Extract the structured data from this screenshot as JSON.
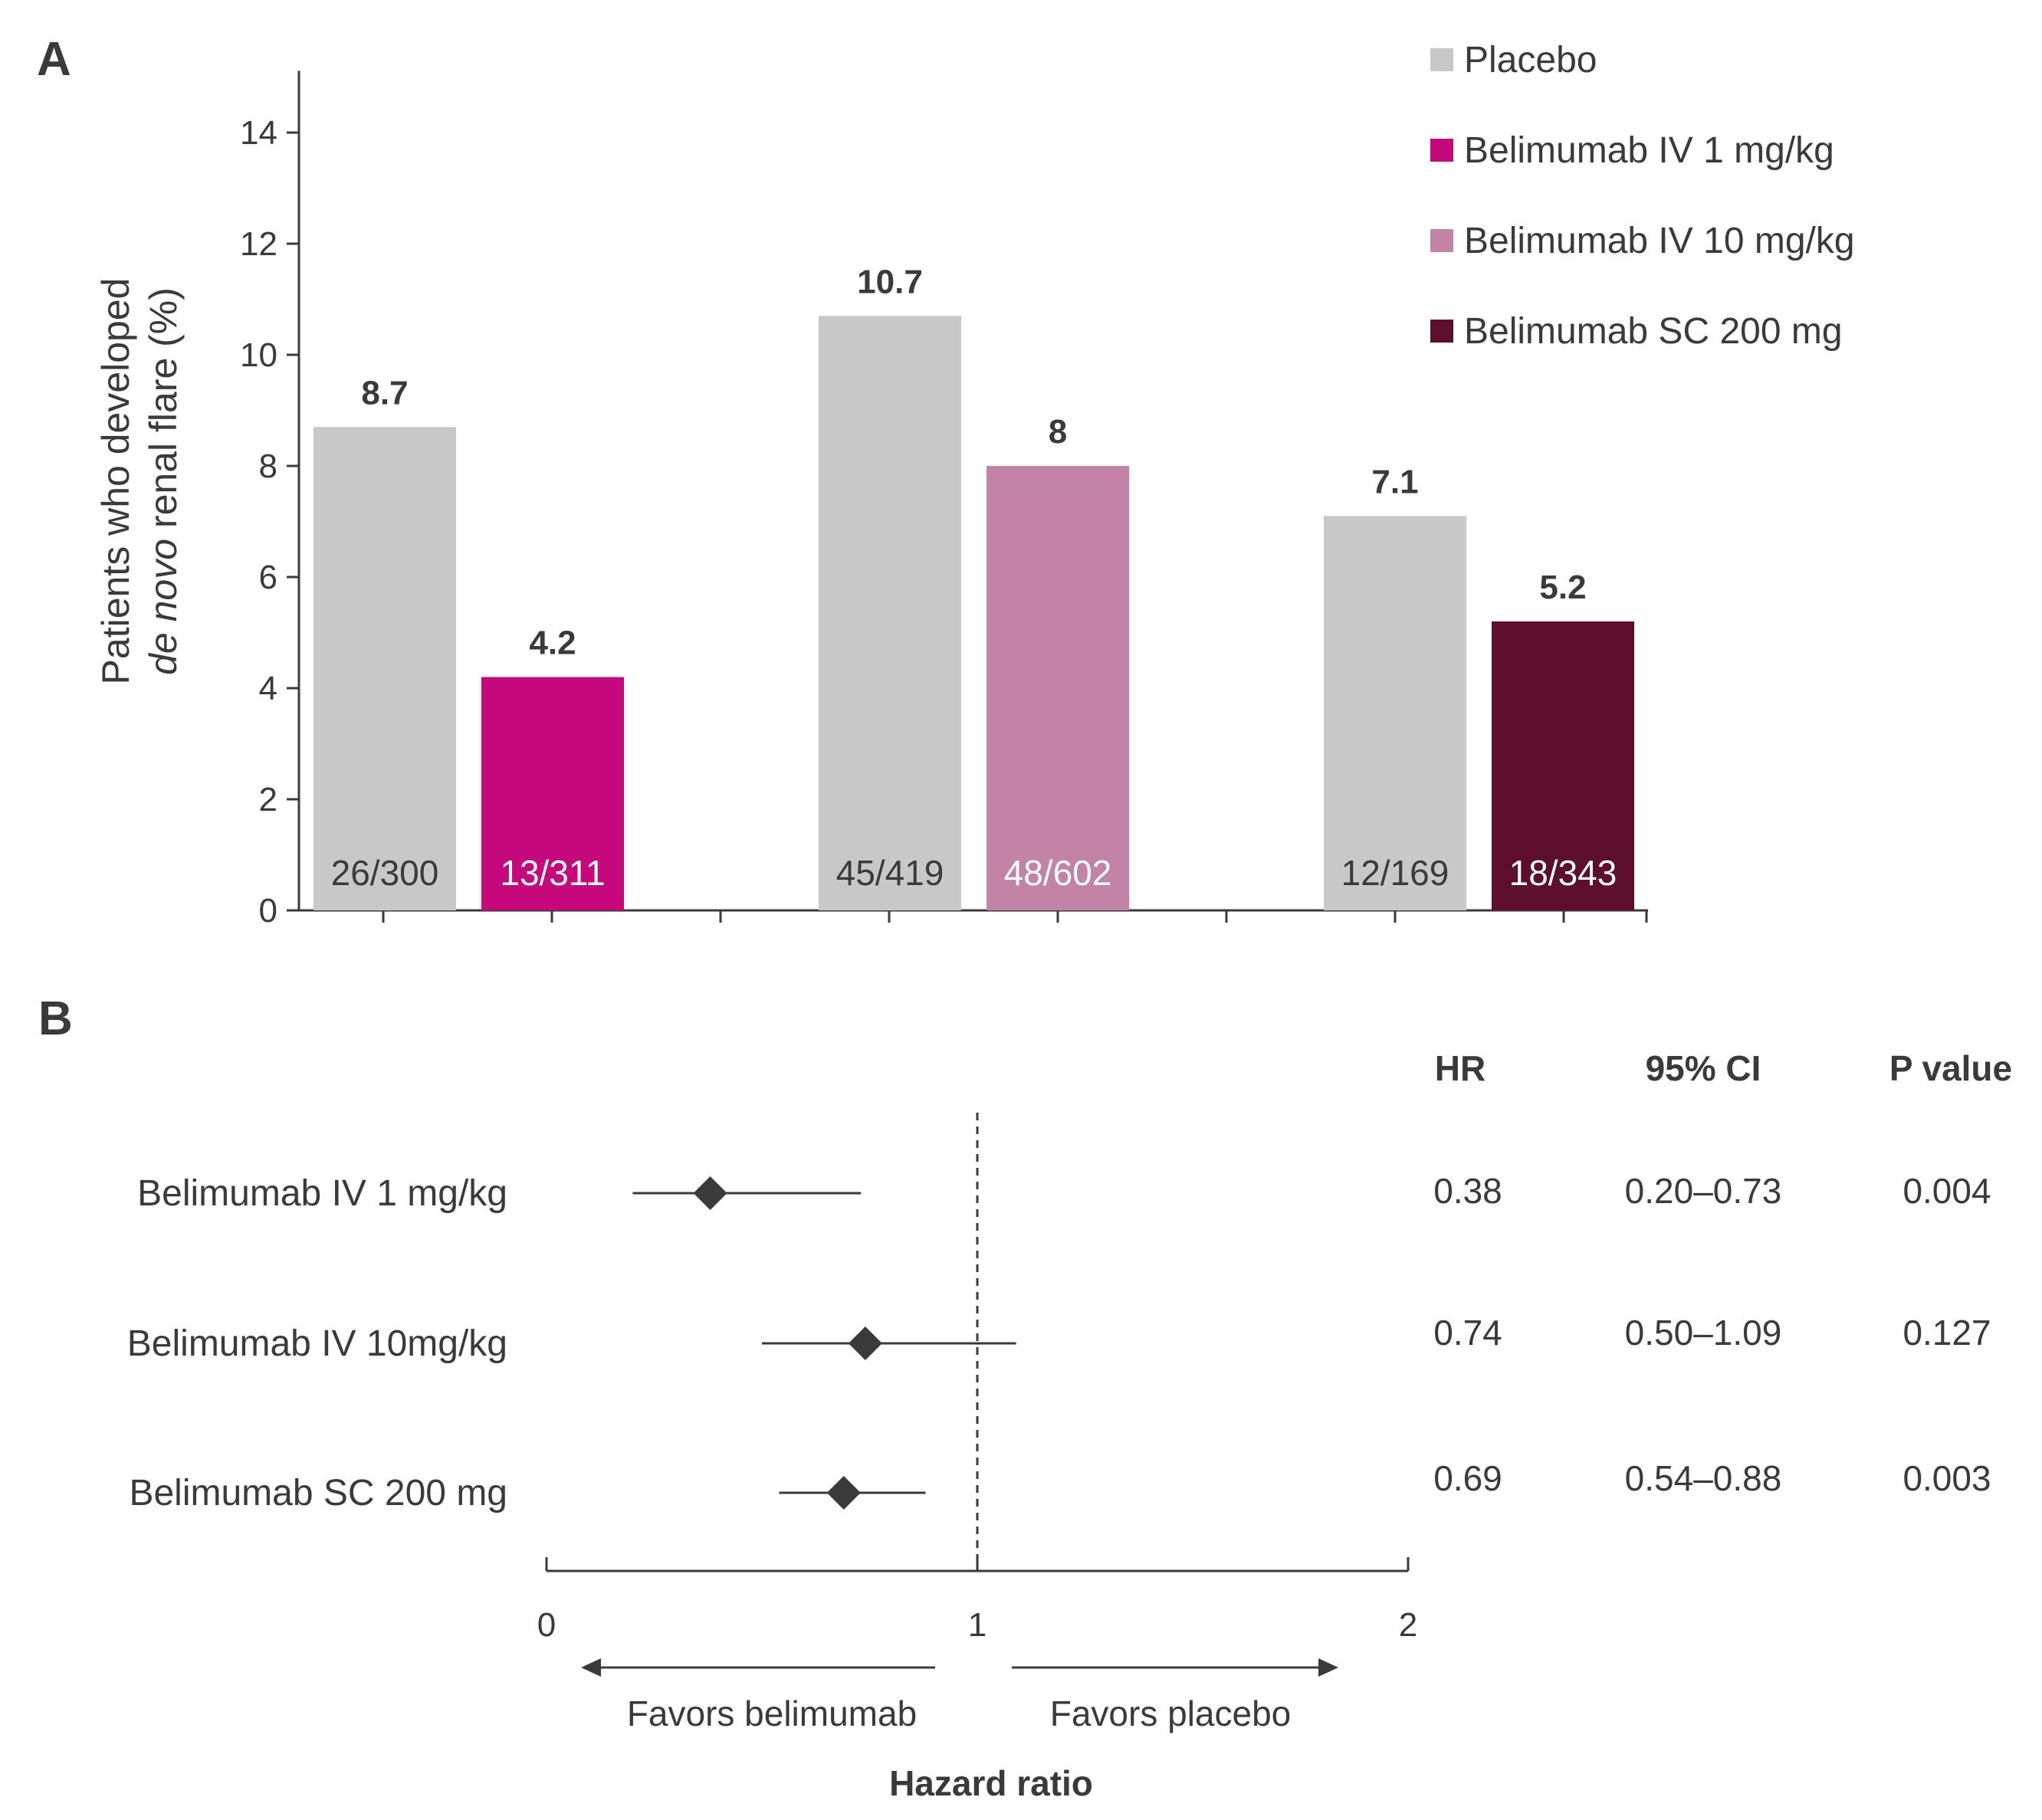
{
  "panel_a_label": "A",
  "panel_b_label": "B",
  "chart_data": [
    {
      "type": "bar",
      "ylabel_line1": "Patients who developed",
      "ylabel_line2_italic": "de novo",
      "ylabel_line2_rest": " renal flare (%)",
      "ylim": [
        0,
        15
      ],
      "yticks": [
        0,
        2,
        4,
        6,
        8,
        10,
        12,
        14
      ],
      "grid": false,
      "legend_position": "top-right",
      "series_legend": [
        {
          "name": "Placebo",
          "color": "#c8c8c8"
        },
        {
          "name": "Belimumab IV 1 mg/kg",
          "color": "#c5087c"
        },
        {
          "name": "Belimumab IV 10 mg/kg",
          "color": "#c283a6"
        },
        {
          "name": "Belimumab SC 200 mg",
          "color": "#5c0e2a"
        }
      ],
      "bars": [
        {
          "series": "Placebo",
          "group": 0,
          "value": 8.7,
          "label": "8.7",
          "count": "26/300",
          "color": "#c8c8c8",
          "count_color": "#3a3a3a"
        },
        {
          "series": "Belimumab IV 1 mg/kg",
          "group": 0,
          "value": 4.2,
          "label": "4.2",
          "count": "13/311",
          "color": "#c5087c",
          "count_color": "#ffffff"
        },
        {
          "series": "Placebo",
          "group": 1,
          "value": 10.7,
          "label": "10.7",
          "count": "45/419",
          "color": "#c8c8c8",
          "count_color": "#3a3a3a"
        },
        {
          "series": "Belimumab IV 10 mg/kg",
          "group": 1,
          "value": 8,
          "label": "8",
          "count": "48/602",
          "color": "#c283a6",
          "count_color": "#ffffff"
        },
        {
          "series": "Placebo",
          "group": 2,
          "value": 7.1,
          "label": "7.1",
          "count": "12/169",
          "color": "#c8c8c8",
          "count_color": "#3a3a3a"
        },
        {
          "series": "Belimumab SC 200 mg",
          "group": 2,
          "value": 5.2,
          "label": "5.2",
          "count": "18/343",
          "color": "#5c0e2a",
          "count_color": "#ffffff"
        }
      ]
    },
    {
      "type": "forest",
      "xlabel": "Hazard ratio",
      "xlim": [
        0,
        2
      ],
      "xticks": [
        0,
        1,
        2
      ],
      "reference_line": 1,
      "favors_left": "Favors belimumab",
      "favors_right": "Favors placebo",
      "columns": [
        "HR",
        "95% CI",
        "P value"
      ],
      "rows": [
        {
          "label": "Belimumab IV 1 mg/kg",
          "hr": 0.38,
          "ci_low": 0.2,
          "ci_high": 0.73,
          "hr_text": "0.38",
          "ci_text": "0.20–0.73",
          "p_text": "0.004"
        },
        {
          "label": "Belimumab IV 10mg/kg",
          "hr": 0.74,
          "ci_low": 0.5,
          "ci_high": 1.09,
          "hr_text": "0.74",
          "ci_text": "0.50–1.09",
          "p_text": "0.127"
        },
        {
          "label": "Belimumab SC 200 mg",
          "hr": 0.69,
          "ci_low": 0.54,
          "ci_high": 0.88,
          "hr_text": "0.69",
          "ci_text": "0.54–0.88",
          "p_text": "0.003"
        }
      ]
    }
  ]
}
